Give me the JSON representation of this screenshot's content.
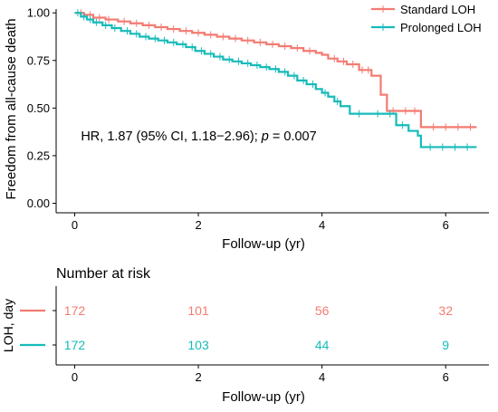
{
  "chart_data": [
    {
      "type": "line",
      "subtype": "kaplan-meier",
      "ylabel": "Freedom from all-cause death",
      "xlabel": "Follow-up (yr)",
      "xlim": [
        -0.3,
        6.7
      ],
      "ylim": [
        -0.05,
        1.02
      ],
      "xticks": [
        0,
        2,
        4,
        6
      ],
      "yticks": [
        "0.00",
        "0.25",
        "0.50",
        "0.75",
        "1.00"
      ],
      "annotation": {
        "prefix": "HR, 1.87 (95% CI, 1.18−2.96); ",
        "p_symbol": "p",
        "suffix": " = 0.007",
        "x": 0.1,
        "y": 0.33
      },
      "legend": {
        "placement": "top-right"
      },
      "series": [
        {
          "name": "Standard LOH",
          "color": "#F37B72",
          "x": [
            0,
            0.15,
            0.3,
            0.5,
            0.7,
            0.9,
            1.1,
            1.3,
            1.5,
            1.7,
            1.9,
            2.1,
            2.3,
            2.5,
            2.7,
            2.9,
            3.1,
            3.3,
            3.5,
            3.7,
            3.9,
            4.0,
            4.1,
            4.25,
            4.4,
            4.6,
            4.8,
            4.95,
            5.05,
            5.25,
            5.4,
            5.55,
            5.6,
            6.5
          ],
          "y": [
            1.0,
            0.99,
            0.975,
            0.965,
            0.955,
            0.945,
            0.935,
            0.925,
            0.915,
            0.905,
            0.895,
            0.885,
            0.875,
            0.865,
            0.855,
            0.845,
            0.835,
            0.825,
            0.815,
            0.8,
            0.79,
            0.78,
            0.76,
            0.745,
            0.73,
            0.7,
            0.67,
            0.57,
            0.485,
            0.485,
            0.485,
            0.485,
            0.4,
            0.4
          ],
          "censor_x": [
            0.1,
            0.25,
            0.4,
            0.55,
            0.8,
            1.0,
            1.2,
            1.4,
            1.6,
            1.8,
            2.0,
            2.2,
            2.4,
            2.6,
            2.8,
            3.0,
            3.2,
            3.4,
            3.6,
            3.8,
            4.2,
            4.35,
            4.5,
            4.65,
            4.75,
            5.15,
            5.35,
            5.5,
            5.8,
            6.0,
            6.2,
            6.4
          ]
        },
        {
          "name": "Prolonged LOH",
          "color": "#16BBBA",
          "x": [
            0,
            0.1,
            0.2,
            0.3,
            0.45,
            0.6,
            0.75,
            0.9,
            1.05,
            1.2,
            1.35,
            1.5,
            1.65,
            1.8,
            1.95,
            2.1,
            2.25,
            2.4,
            2.55,
            2.7,
            2.85,
            3.0,
            3.15,
            3.3,
            3.45,
            3.6,
            3.75,
            3.9,
            4.0,
            4.1,
            4.2,
            4.3,
            4.45,
            5.0,
            5.2,
            5.4,
            5.55,
            5.6,
            6.5
          ],
          "y": [
            1.0,
            0.98,
            0.965,
            0.95,
            0.935,
            0.92,
            0.905,
            0.89,
            0.875,
            0.865,
            0.855,
            0.845,
            0.835,
            0.82,
            0.8,
            0.785,
            0.77,
            0.755,
            0.745,
            0.735,
            0.725,
            0.715,
            0.705,
            0.69,
            0.67,
            0.645,
            0.625,
            0.6,
            0.58,
            0.56,
            0.535,
            0.51,
            0.47,
            0.47,
            0.41,
            0.38,
            0.355,
            0.295,
            0.295
          ],
          "censor_x": [
            0.05,
            0.15,
            0.25,
            0.35,
            0.5,
            0.65,
            0.85,
            1.0,
            1.15,
            1.3,
            1.45,
            1.6,
            1.75,
            1.9,
            2.05,
            2.2,
            2.35,
            2.5,
            2.65,
            2.8,
            2.95,
            3.1,
            3.25,
            3.4,
            3.55,
            3.7,
            3.85,
            4.05,
            4.25,
            4.6,
            4.9,
            5.1,
            5.3,
            5.75,
            5.95,
            6.15,
            6.35
          ]
        }
      ]
    },
    {
      "type": "table",
      "title": "Number at risk",
      "row_label": "LOH, day",
      "xlabel": "Follow-up (yr)",
      "xticks": [
        0,
        2,
        4,
        6
      ],
      "rows": [
        {
          "color": "#F37B72",
          "x": [
            0,
            2,
            4,
            6
          ],
          "values": [
            "172",
            "101",
            "56",
            "32"
          ]
        },
        {
          "color": "#16BBBA",
          "x": [
            0,
            2,
            4,
            6
          ],
          "values": [
            "172",
            "103",
            "44",
            "9"
          ]
        }
      ]
    }
  ]
}
